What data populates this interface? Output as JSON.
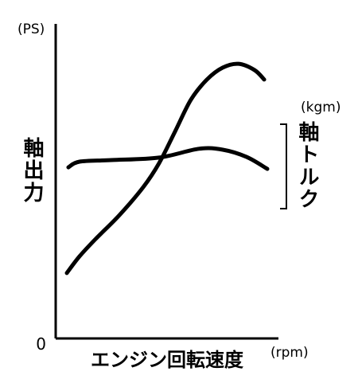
{
  "chart_data": {
    "type": "line",
    "x_label": "エンジン回転速度",
    "x_unit": "(rpm)",
    "y_unit": "(PS)",
    "y2_unit": "(kgm)",
    "xlim": [
      0,
      100
    ],
    "ylim": [
      0,
      100
    ],
    "yticks": [
      0
    ],
    "series": [
      {
        "name": "軸出力",
        "color": "#000000",
        "x": [
          5,
          10.7,
          17.9,
          28.6,
          39.3,
          46.4,
          53.6,
          60.7,
          67.9,
          75,
          82.1,
          89.3,
          93.6
        ],
        "values": [
          20.8,
          26.1,
          31.6,
          39.2,
          48.1,
          55.7,
          65.8,
          75.9,
          82.3,
          86.1,
          87.3,
          85.3,
          82.3
        ]
      },
      {
        "name": "軸トルク",
        "color": "#000000",
        "x": [
          5.7,
          10.7,
          25,
          46.4,
          64.3,
          75,
          85.7,
          95
        ],
        "values": [
          54.4,
          56.2,
          56.7,
          57.5,
          60.3,
          60,
          57.7,
          53.9
        ]
      }
    ]
  }
}
